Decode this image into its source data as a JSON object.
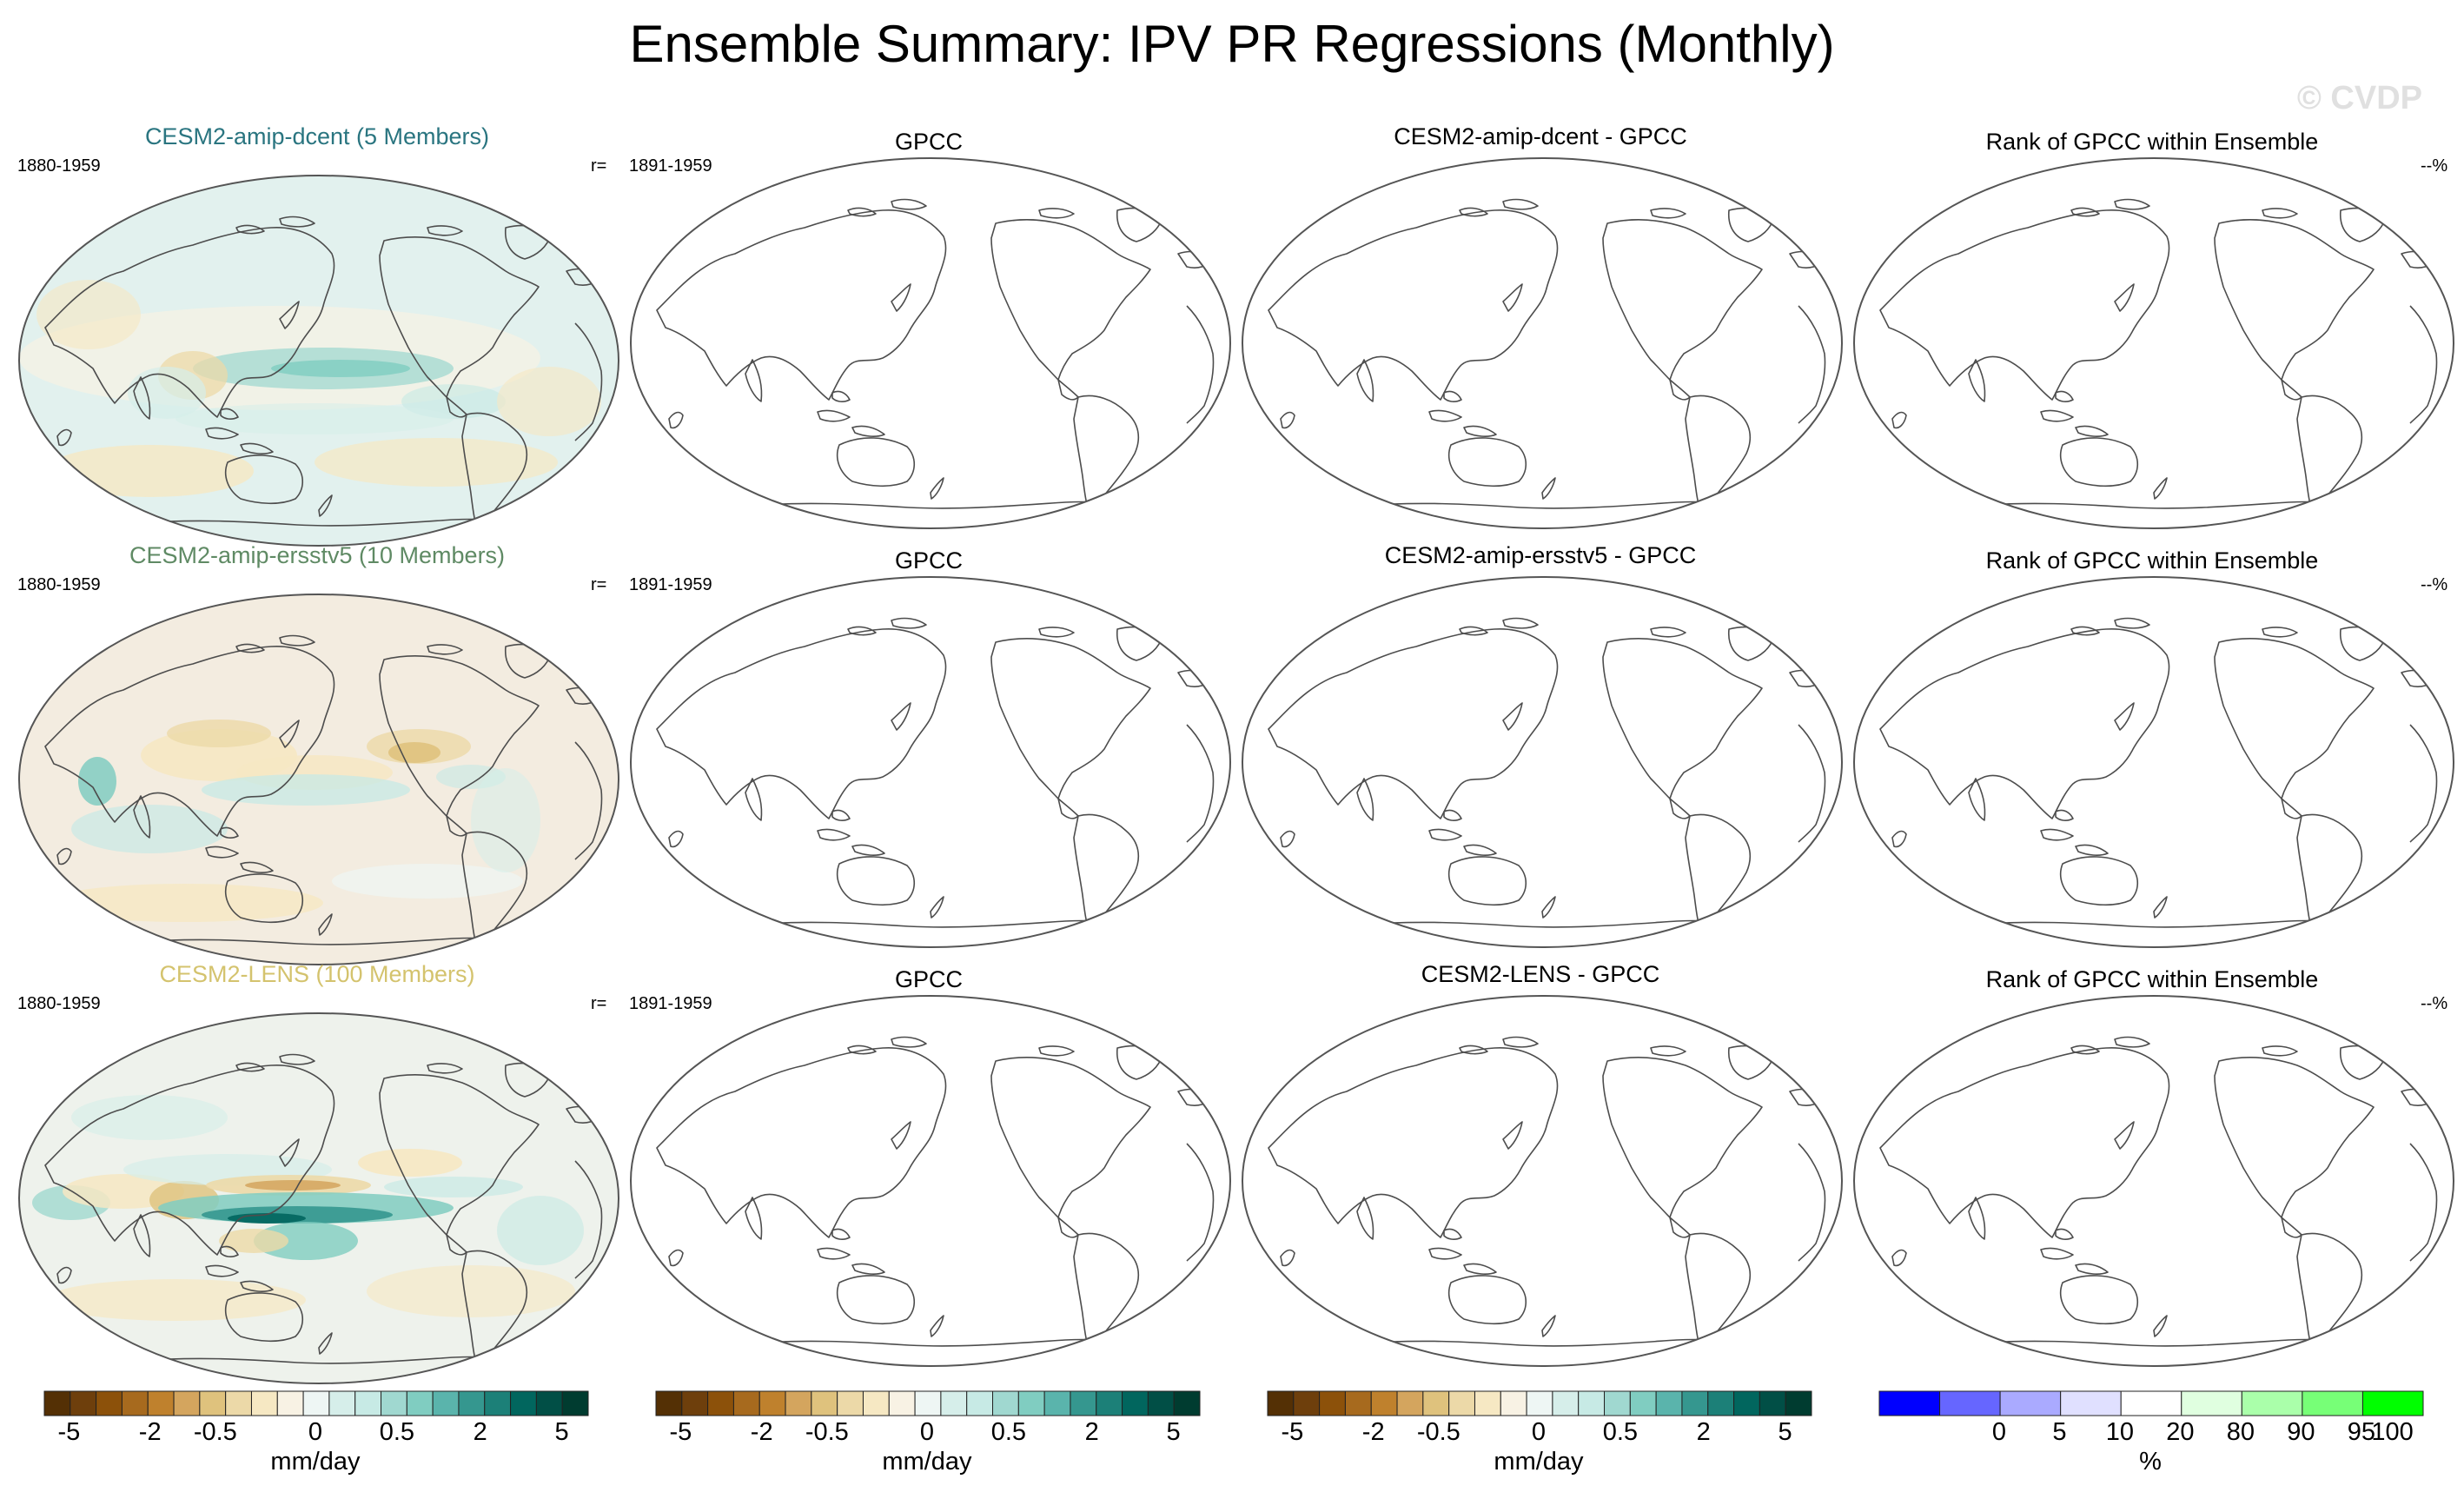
{
  "title": "Ensemble Summary: IPV PR Regressions (Monthly)",
  "watermark": "© CVDP",
  "rows": [
    {
      "ensemble_title": "CESM2-amip-dcent (5 Members)",
      "title_color": "#2a7580",
      "model_years": "1880-1959",
      "r_label": "r=",
      "obs_title": "GPCC",
      "obs_years": "1891-1959",
      "diff_title": "CESM2-amip-dcent - GPCC",
      "rank_title": "Rank of GPCC within Ensemble",
      "rank_value": "--%"
    },
    {
      "ensemble_title": "CESM2-amip-ersstv5 (10 Members)",
      "title_color": "#5f8a64",
      "model_years": "1880-1959",
      "r_label": "r=",
      "obs_title": "GPCC",
      "obs_years": "1891-1959",
      "diff_title": "CESM2-amip-ersstv5 - GPCC",
      "rank_title": "Rank of GPCC within Ensemble",
      "rank_value": "--%"
    },
    {
      "ensemble_title": "CESM2-LENS (100 Members)",
      "title_color": "#d4c36e",
      "model_years": "1880-1959",
      "r_label": "r=",
      "obs_title": "GPCC",
      "obs_years": "1891-1959",
      "diff_title": "CESM2-LENS - GPCC",
      "rank_title": "Rank of GPCC within Ensemble",
      "rank_value": "--%"
    }
  ],
  "pr_colorbar": {
    "colors": [
      "#543005",
      "#6e3f0c",
      "#8c510a",
      "#a76a1e",
      "#bf812d",
      "#d4a55e",
      "#dfc27d",
      "#ecd9a8",
      "#f6e8c3",
      "#f8f2e4",
      "#eef6f4",
      "#d6eeea",
      "#c7eae5",
      "#a0d8d0",
      "#80cdc1",
      "#5ab4ac",
      "#35978f",
      "#1c8078",
      "#01665e",
      "#014f46",
      "#003c30"
    ],
    "ticks": [
      "-5",
      "-2",
      "-0.5",
      "0",
      "0.5",
      "2",
      "5"
    ],
    "unit": "mm/day"
  },
  "rank_colorbar": {
    "colors": [
      "#0000ff",
      "#6666ff",
      "#aaaaff",
      "#e0e0ff",
      "#ffffff",
      "#e0ffe0",
      "#aaffaa",
      "#77ff77",
      "#00ff00"
    ],
    "ticks": [
      "0",
      "5",
      "10",
      "20",
      "80",
      "90",
      "95",
      "100"
    ],
    "unit": "%"
  },
  "colors": {
    "map_border": "#555555",
    "coast": "#4d4d4d",
    "base_dcent": "#e2f1ee",
    "base_ersst": "#f3ece0",
    "base_lens": "#eef2ec"
  }
}
